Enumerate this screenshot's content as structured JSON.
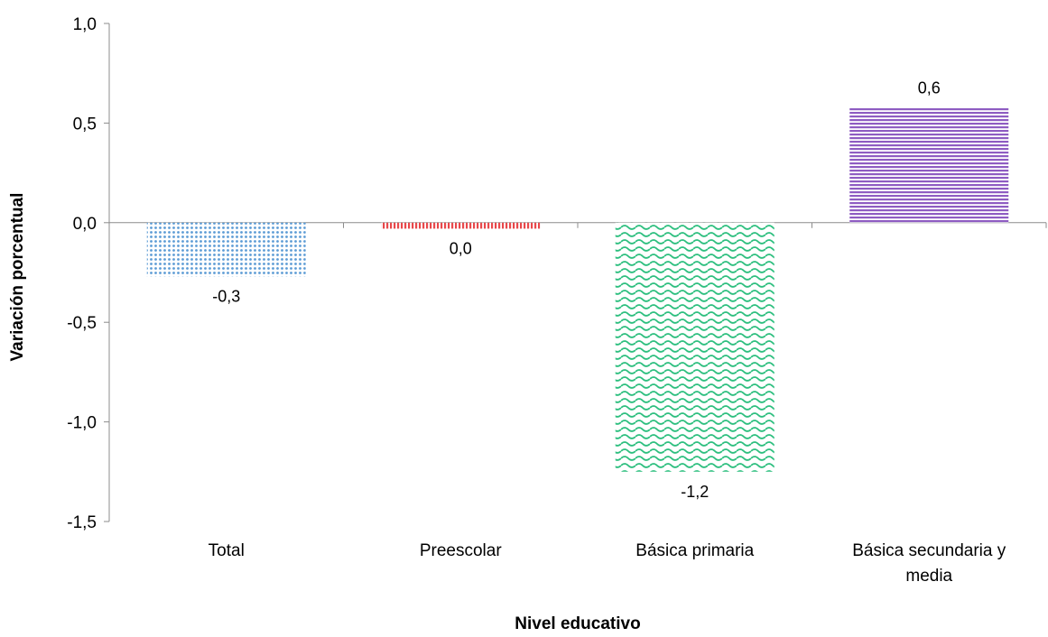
{
  "chart_data": {
    "type": "bar",
    "title": "",
    "xlabel": "Nivel educativo",
    "ylabel": "Variación porcentual",
    "ylim": [
      -1.5,
      1.0
    ],
    "yticks": [
      "1,0",
      "0,5",
      "0,0",
      "-0,5",
      "-1,0",
      "-1,5"
    ],
    "ytick_values": [
      1.0,
      0.5,
      0.0,
      -0.5,
      -1.0,
      -1.5
    ],
    "grid": false,
    "legend": "none",
    "categories": [
      [
        "Total"
      ],
      [
        "Preescolar"
      ],
      [
        "Básica primaria"
      ],
      [
        "Básica secundaria y",
        "media"
      ]
    ],
    "values": [
      -0.27,
      -0.03,
      -1.25,
      0.58
    ],
    "data_labels": [
      "-0,3",
      "0,0",
      "-1,2",
      "0,6"
    ],
    "colors": [
      "#5b9bd5",
      "#e8484b",
      "#2ebf7f",
      "#8e5cc2"
    ],
    "patterns": [
      "dots",
      "vertical-lines",
      "waves",
      "horizontal-lines"
    ]
  }
}
